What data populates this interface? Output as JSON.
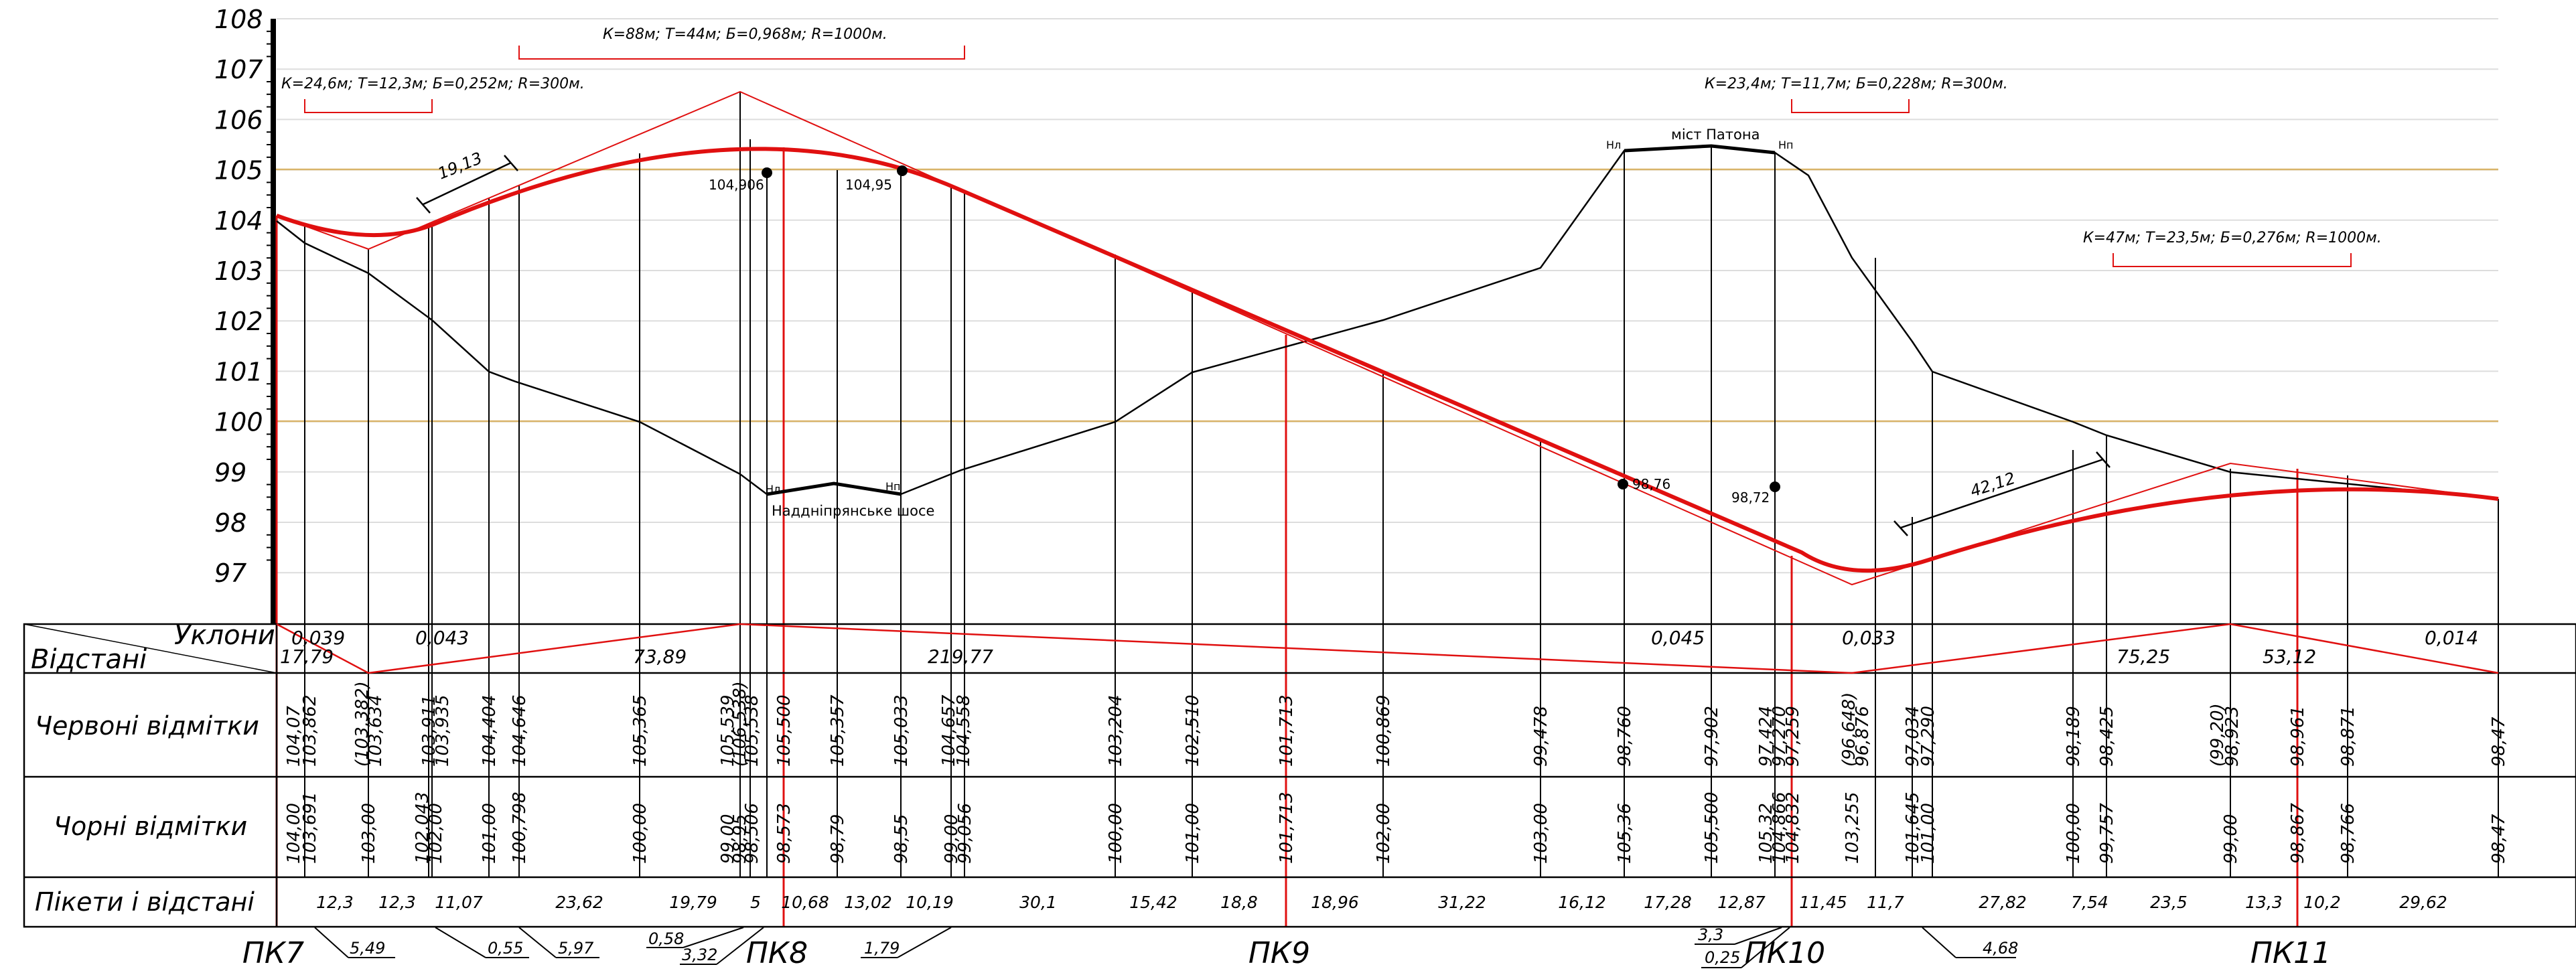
{
  "axis": {
    "ticks": [
      "108",
      "107",
      "106",
      "105",
      "104",
      "103",
      "102",
      "101",
      "100",
      "99",
      "98",
      "97"
    ]
  },
  "curves": {
    "c1": "К=24,6м;  Т=12,3м;  Б=0,252м;  R=300м.",
    "c2": "К=88м;  Т=44м;  Б=0,968м;  R=1000м.",
    "c3": "К=23,4м;  Т=11,7м;  Б=0,228м;  R=300м.",
    "c4": "К=47м;  Т=23,5м;  Б=0,276м;  R=1000м."
  },
  "profile_labels": {
    "pt1": "104,906",
    "pt2": "104,95",
    "pt3": "98,76",
    "pt4": "98,72",
    "h_left_1": "Hл",
    "h_left_2": "Hп",
    "road": "Наддніпрянське шосе",
    "h_bridge_1": "Hл",
    "h_bridge_2": "Hп",
    "bridge": "міст Патона",
    "dim1": "19,13",
    "dim2": "42,12"
  },
  "table": {
    "row_slopes": "Уклони",
    "row_distances": "Відстані",
    "row_red": "Червоні відмітки",
    "row_black": "Чорні відмітки",
    "row_pickets": "Пікети і відстані"
  },
  "slopes": [
    "0,039",
    "0,043",
    "0,045",
    "0,033",
    "0,014"
  ],
  "distances": [
    "17,79",
    "73,89",
    "219,77",
    "75,25",
    "53,12"
  ],
  "red_marks": [
    "104,07",
    "103,862",
    "(103,382)",
    "103,634",
    "103,911",
    "103,935",
    "104,404",
    "104,646",
    "105,365",
    "105,539",
    "(106,538)",
    "105,538",
    "105,500",
    "105,357",
    "105,033",
    "104,657",
    "104,558",
    "103,204",
    "102,510",
    "101,713",
    "100,869",
    "99,478",
    "98,760",
    "97,902",
    "97,424",
    "97,270",
    "97,259",
    "(96,648)",
    "96,876",
    "97,034",
    "97,290",
    "98,189",
    "98,425",
    "(99,20)",
    "98,923",
    "98,961",
    "98,871",
    "98,47"
  ],
  "black_marks": [
    "104,00",
    "103,691",
    "103,00",
    "102,043",
    "102,00",
    "101,00",
    "100,798",
    "100,00",
    "99,00",
    "98,95",
    "98,506",
    "98,573",
    "98,79",
    "98,55",
    "99,00",
    "99,056",
    "100,00",
    "101,00",
    "101,713",
    "102,00",
    "103,00",
    "105,36",
    "105,500",
    "105,32",
    "104,866",
    "104,832",
    "103,255",
    "101,645",
    "101,00",
    "100,00",
    "99,757",
    "99,00",
    "98,867",
    "98,766",
    "98,47"
  ],
  "picket_distances": [
    "12,3",
    "12,3",
    "11,07",
    "23,62",
    "19,79",
    "5",
    "10,68",
    "13,02",
    "10,19",
    "30,1",
    "15,42",
    "18,8",
    "18,96",
    "31,22",
    "16,12",
    "17,28",
    "12,87",
    "11,45",
    "11,7",
    "27,82",
    "7,54",
    "23,5",
    "13,3",
    "10,2",
    "29,62"
  ],
  "pickets": [
    "ПК7",
    "ПК8",
    "ПК9",
    "ПК10",
    "ПК11"
  ],
  "leaders": [
    "5,49",
    "0,55",
    "5,97",
    "0,58",
    "3,32",
    "1,79",
    "3,3",
    "0,25",
    "4,68"
  ]
}
